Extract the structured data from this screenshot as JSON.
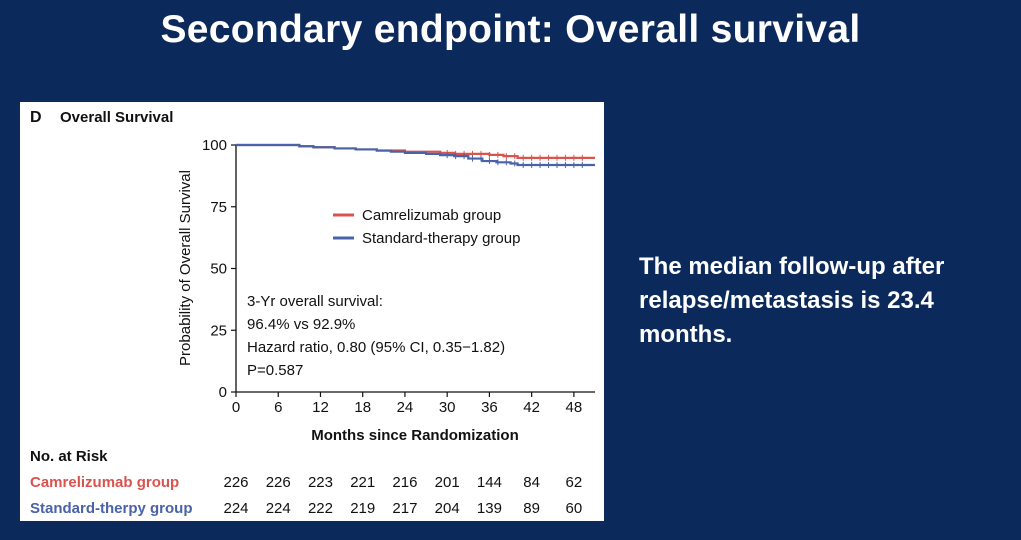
{
  "slide": {
    "title": "Secondary endpoint: Overall survival",
    "side_note": "The median follow-up after\nrelapse/metastasis is 23.4\nmonths.",
    "background_color": "#0b2a5b"
  },
  "chart_data": {
    "type": "line",
    "panel_letter": "D",
    "title": "Overall Survival",
    "xlabel": "Months since Randomization",
    "ylabel": "Probability of Overall Survival",
    "xlim": [
      0,
      51
    ],
    "ylim": [
      0,
      100
    ],
    "xticks": [
      0,
      6,
      12,
      18,
      24,
      30,
      36,
      42,
      48
    ],
    "yticks": [
      0,
      25,
      50,
      75,
      100
    ],
    "grid": false,
    "legend_position": "top-center",
    "series": [
      {
        "name": "Camrelizumab group",
        "color": "#d9534f",
        "x": [
          0,
          7,
          9,
          11,
          14,
          17,
          20,
          24,
          26,
          29,
          31,
          34,
          36,
          38,
          40,
          43,
          51
        ],
        "y": [
          100,
          100,
          99.5,
          99.1,
          98.6,
          98.2,
          97.8,
          97.3,
          97.3,
          96.8,
          96.4,
          96.4,
          96.0,
          95.5,
          94.8,
          94.8,
          94.8
        ]
      },
      {
        "name": "Standard-therapy group",
        "color": "#4a63a8",
        "x": [
          0,
          7,
          9,
          11,
          14,
          17,
          20,
          22,
          24,
          27,
          29,
          31,
          33,
          35,
          37,
          39,
          40,
          43,
          51
        ],
        "y": [
          100,
          100,
          99.5,
          99.1,
          98.6,
          98.2,
          97.7,
          97.3,
          96.8,
          96.4,
          95.9,
          95.5,
          94.5,
          93.5,
          93.0,
          92.5,
          91.9,
          91.9,
          91.9
        ]
      }
    ],
    "annotation_lines": [
      "3-Yr overall survival:",
      "96.4% vs 92.9%",
      "Hazard ratio, 0.80 (95% CI, 0.35−1.82)",
      "P=0.587"
    ],
    "risk_table": {
      "title": "No. at Risk",
      "timepoints": [
        0,
        6,
        12,
        18,
        24,
        30,
        36,
        42,
        48
      ],
      "rows": [
        {
          "label": "Camrelizumab group",
          "color": "#d9534f",
          "values": [
            226,
            226,
            223,
            221,
            216,
            201,
            144,
            84,
            62
          ]
        },
        {
          "label": "Standard-therpy group",
          "color": "#4a63a8",
          "values": [
            224,
            224,
            222,
            219,
            217,
            204,
            139,
            89,
            60
          ]
        }
      ]
    }
  }
}
